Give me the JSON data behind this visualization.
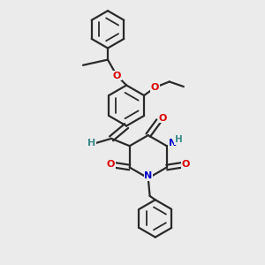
{
  "bg": "#ebebeb",
  "bc": "#2a2a2a",
  "Oc": "#dd0000",
  "Nc": "#0000cc",
  "Hc": "#3a8a8a",
  "lw": 1.6,
  "lw_dbl_inner": 1.3,
  "fs": 8.0,
  "figsize": [
    3.0,
    3.0
  ],
  "dpi": 100,
  "xlim": [
    0.05,
    0.82
  ],
  "ylim": [
    0.03,
    0.99
  ]
}
